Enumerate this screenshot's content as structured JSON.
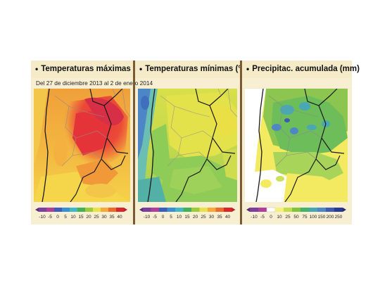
{
  "panels": [
    {
      "title": "Temperaturas máximas (°C)",
      "ticks": [
        "-10",
        "-5",
        "0",
        "5",
        "10",
        "15",
        "20",
        "25",
        "30",
        "35",
        "40"
      ],
      "colors": [
        "#7b3f9e",
        "#b03f9a",
        "#3b5dbd",
        "#3a8fd0",
        "#41b7c8",
        "#45b05a",
        "#9ccc3c",
        "#e9e34b",
        "#f6a93a",
        "#ec6a2c",
        "#d8272b"
      ]
    },
    {
      "title": "Temperaturas mínimas (°C)",
      "ticks": [
        "-10",
        "-5",
        "0",
        "5",
        "10",
        "15",
        "20",
        "25",
        "30",
        "35",
        "40"
      ],
      "colors": [
        "#7b3f9e",
        "#b03f9a",
        "#3b5dbd",
        "#3a8fd0",
        "#41b7c8",
        "#45b05a",
        "#9ccc3c",
        "#e9e34b",
        "#f6a93a",
        "#ec6a2c",
        "#d8272b"
      ]
    },
    {
      "title": "Precipitac. acumulada (mm)",
      "ticks": [
        "-10",
        "-5",
        "0",
        "10",
        "25",
        "50",
        "75",
        "100",
        "150",
        "200",
        "250"
      ],
      "colors": [
        "#7b3f9e",
        "#b03f9a",
        "#ffffff",
        "#f6ef7a",
        "#c5dc4a",
        "#7fc341",
        "#45b26b",
        "#44a8b4",
        "#4f86c6",
        "#3d5bb3",
        "#2a3a92"
      ]
    }
  ],
  "date_range": "Del 27 de diciembre 2013 al 2 de enero 2014",
  "colors": {
    "frame": "#f5ebc8",
    "separator": "#7a5a32",
    "ocean": "#f5de4a",
    "hot_red": "#e63a37",
    "orange": "#f39b3a",
    "green": "#8fc752",
    "teal": "#5bb7b2",
    "blue": "#4f7fc2"
  }
}
